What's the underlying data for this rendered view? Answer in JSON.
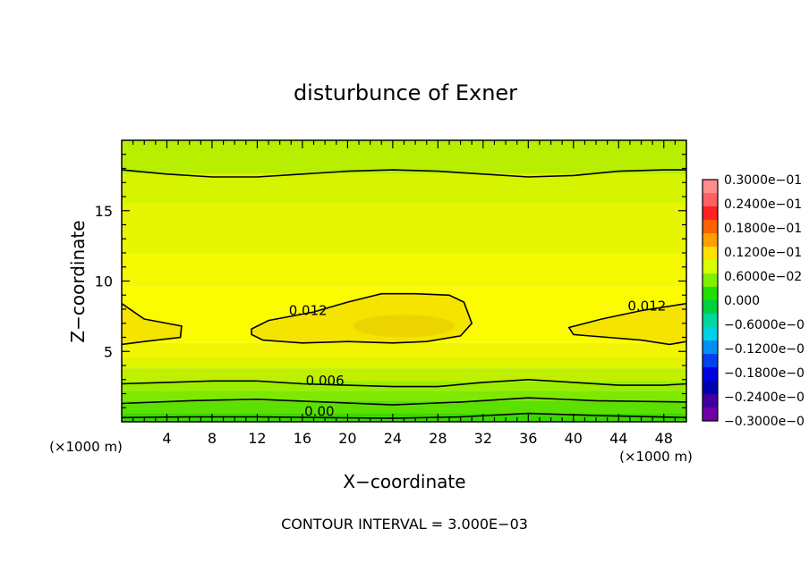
{
  "chart_data": {
    "type": "heatmap",
    "title": "disturbunce of Exner",
    "xlabel": "X−coordinate",
    "ylabel": "Z−coordinate",
    "x_unit_left": "(×1000 m)",
    "x_unit_right": "(×1000 m)",
    "xlim": [
      0,
      50
    ],
    "ylim": [
      0,
      20
    ],
    "x_ticks": [
      4,
      8,
      12,
      16,
      20,
      24,
      28,
      32,
      36,
      40,
      44,
      48
    ],
    "y_ticks": [
      5,
      10,
      15
    ],
    "footer": "CONTOUR INTERVAL = 3.000E−03",
    "contour_interval": 0.003,
    "contour_labels": [
      {
        "text": "0.012",
        "x": 16.5,
        "y": 7.6
      },
      {
        "text": "0.012",
        "x": 46.5,
        "y": 7.9
      },
      {
        "text": "0.006",
        "x": 18.0,
        "y": 2.6
      },
      {
        "text": "0.00",
        "x": 17.5,
        "y": 0.4
      }
    ],
    "contour_lines": [
      {
        "level": 0.009,
        "points": [
          [
            0,
            17.9
          ],
          [
            4,
            17.6
          ],
          [
            8,
            17.4
          ],
          [
            12,
            17.4
          ],
          [
            16,
            17.6
          ],
          [
            20,
            17.8
          ],
          [
            24,
            17.9
          ],
          [
            28,
            17.8
          ],
          [
            32,
            17.6
          ],
          [
            36,
            17.4
          ],
          [
            40,
            17.5
          ],
          [
            44,
            17.8
          ],
          [
            48,
            17.9
          ],
          [
            50,
            17.9
          ]
        ]
      },
      {
        "level": 0.012,
        "closed": false,
        "points": [
          [
            0,
            8.4
          ],
          [
            2,
            7.3
          ],
          [
            5.3,
            6.8
          ],
          [
            5.2,
            6.0
          ],
          [
            2,
            5.7
          ],
          [
            0,
            5.5
          ]
        ]
      },
      {
        "level": 0.012,
        "closed": true,
        "points": [
          [
            11.5,
            6.6
          ],
          [
            13,
            7.2
          ],
          [
            17,
            7.8
          ],
          [
            20,
            8.5
          ],
          [
            23,
            9.1
          ],
          [
            26,
            9.1
          ],
          [
            29,
            9.0
          ],
          [
            30.3,
            8.5
          ],
          [
            31,
            7.0
          ],
          [
            30,
            6.1
          ],
          [
            27,
            5.7
          ],
          [
            24,
            5.6
          ],
          [
            20,
            5.7
          ],
          [
            16,
            5.6
          ],
          [
            12.5,
            5.8
          ],
          [
            11.5,
            6.2
          ]
        ]
      },
      {
        "level": 0.012,
        "closed": false,
        "points": [
          [
            50,
            8.4
          ],
          [
            46,
            7.9
          ],
          [
            42.5,
            7.3
          ],
          [
            39.6,
            6.7
          ],
          [
            40,
            6.2
          ],
          [
            43,
            6.0
          ],
          [
            46,
            5.8
          ],
          [
            48.5,
            5.5
          ],
          [
            50,
            5.7
          ]
        ]
      },
      {
        "level": 0.006,
        "points": [
          [
            0,
            2.7
          ],
          [
            4,
            2.8
          ],
          [
            8,
            2.9
          ],
          [
            12,
            2.9
          ],
          [
            16,
            2.7
          ],
          [
            20,
            2.6
          ],
          [
            24,
            2.5
          ],
          [
            28,
            2.5
          ],
          [
            32,
            2.8
          ],
          [
            36,
            3.0
          ],
          [
            40,
            2.8
          ],
          [
            44,
            2.6
          ],
          [
            48,
            2.6
          ],
          [
            50,
            2.7
          ]
        ]
      },
      {
        "level": 0.003,
        "points": [
          [
            0,
            1.3
          ],
          [
            6,
            1.5
          ],
          [
            12,
            1.6
          ],
          [
            18,
            1.4
          ],
          [
            24,
            1.2
          ],
          [
            30,
            1.4
          ],
          [
            36,
            1.7
          ],
          [
            42,
            1.5
          ],
          [
            50,
            1.4
          ]
        ]
      },
      {
        "level": 0.0,
        "points": [
          [
            0,
            0.3
          ],
          [
            6,
            0.35
          ],
          [
            12,
            0.35
          ],
          [
            18,
            0.3
          ],
          [
            24,
            0.25
          ],
          [
            30,
            0.35
          ],
          [
            36,
            0.6
          ],
          [
            42,
            0.45
          ],
          [
            50,
            0.3
          ]
        ]
      }
    ],
    "color_bands": [
      {
        "ymin": 0.0,
        "ymax": 0.6,
        "color": "#3cd800"
      },
      {
        "ymin": 0.6,
        "ymax": 1.5,
        "color": "#5ce000"
      },
      {
        "ymin": 1.5,
        "ymax": 2.2,
        "color": "#7ee800"
      },
      {
        "ymin": 2.2,
        "ymax": 2.9,
        "color": "#9cee00"
      },
      {
        "ymin": 2.9,
        "ymax": 3.8,
        "color": "#c0f000"
      },
      {
        "ymin": 3.8,
        "ymax": 4.6,
        "color": "#e0f400"
      },
      {
        "ymin": 4.6,
        "ymax": 5.6,
        "color": "#f2f500"
      },
      {
        "ymin": 5.6,
        "ymax": 9.6,
        "color": "#fcfc00"
      },
      {
        "ymin": 9.6,
        "ymax": 12.0,
        "color": "#f4f800"
      },
      {
        "ymin": 12.0,
        "ymax": 15.5,
        "color": "#e6f600"
      },
      {
        "ymin": 15.5,
        "ymax": 17.6,
        "color": "#d6f400"
      },
      {
        "ymin": 17.6,
        "ymax": 20.0,
        "color": "#b8ee00"
      }
    ],
    "warm_region_color": "#f4e400",
    "core_region_color": "#ecd400",
    "colorbar": {
      "labels": [
        "0.3000e−01",
        "0.2400e−01",
        "0.1800e−01",
        "0.1200e−01",
        "0.6000e−02",
        "0.000",
        "−0.6000e−0",
        "−0.1200e−0",
        "−0.1800e−0",
        "−0.2400e−0",
        "−0.3000e−0"
      ],
      "colors": [
        "#ff8c8c",
        "#ff6060",
        "#ff2020",
        "#ff6000",
        "#ffa000",
        "#ffe000",
        "#d8ff00",
        "#80f000",
        "#20e000",
        "#00d040",
        "#00d8a0",
        "#00d0e8",
        "#0090f0",
        "#0040f0",
        "#0000e0",
        "#0000b0",
        "#4000a0",
        "#7000a8"
      ]
    }
  }
}
